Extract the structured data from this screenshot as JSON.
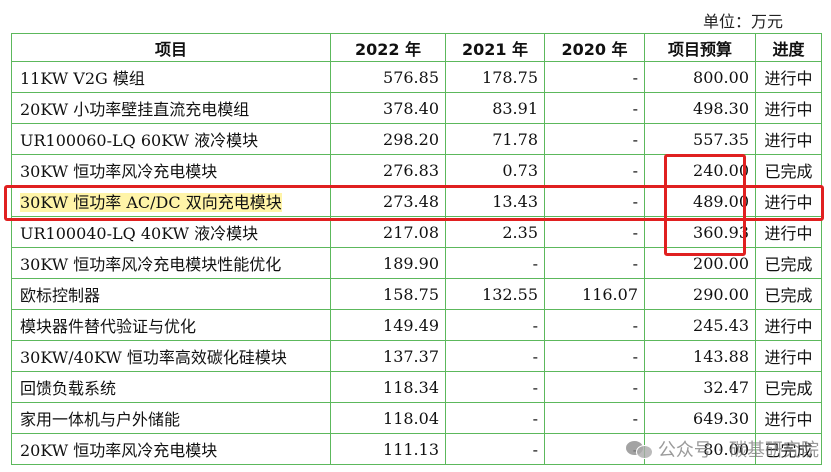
{
  "unit_label": "单位：万元",
  "columns": [
    "项目",
    "2022 年",
    "2021 年",
    "2020 年",
    "项目预算",
    "进度"
  ],
  "rows": [
    [
      "11KW V2G 模组",
      "576.85",
      "178.75",
      "-",
      "800.00",
      "进行中"
    ],
    [
      "20KW 小功率壁挂直流充电模组",
      "378.40",
      "83.91",
      "-",
      "498.30",
      "进行中"
    ],
    [
      "UR100060-LQ 60KW 液冷模块",
      "298.20",
      "71.78",
      "-",
      "557.35",
      "进行中"
    ],
    [
      "30KW 恒功率风冷充电模块",
      "276.83",
      "0.73",
      "-",
      "240.00",
      "已完成"
    ],
    [
      "30KW 恒功率 AC/DC 双向充电模块",
      "273.48",
      "13.43",
      "-",
      "489.00",
      "进行中"
    ],
    [
      "UR100040-LQ 40KW 液冷模块",
      "217.08",
      "2.35",
      "-",
      "360.93",
      "进行中"
    ],
    [
      "30KW 恒功率风冷充电模块性能优化",
      "189.90",
      "-",
      "-",
      "200.00",
      "已完成"
    ],
    [
      "欧标控制器",
      "158.75",
      "132.55",
      "116.07",
      "290.00",
      "已完成"
    ],
    [
      "模块器件替代验证与优化",
      "149.49",
      "-",
      "-",
      "245.43",
      "进行中"
    ],
    [
      "30KW/40KW 恒功率高效碳化硅模块",
      "137.37",
      "-",
      "-",
      "143.88",
      "进行中"
    ],
    [
      "回馈负载系统",
      "118.34",
      "-",
      "-",
      "32.47",
      "已完成"
    ],
    [
      "家用一体机与户外储能",
      "118.04",
      "-",
      "-",
      "649.30",
      "进行中"
    ],
    [
      "20KW 恒功率风冷充电模块",
      "111.13",
      "-",
      "-",
      "80.00",
      "已完成"
    ]
  ],
  "highlight_row_index": 4,
  "watermark": "公众号 · 碳基研究院",
  "colors": {
    "grid_border": "#5cb85c",
    "highlight_fill": "#fff4a8",
    "annotation_box": "#e02020"
  }
}
